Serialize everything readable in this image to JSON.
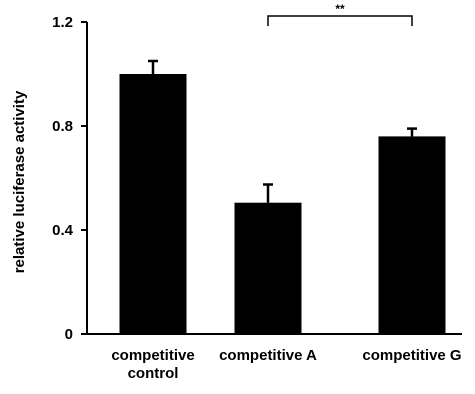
{
  "chart_data": {
    "type": "bar",
    "categories": [
      [
        "competitive",
        "control"
      ],
      [
        "competitive A"
      ],
      [
        "competitive G"
      ]
    ],
    "values": [
      1.0,
      0.505,
      0.76
    ],
    "errors": [
      0.05,
      0.07,
      0.03
    ],
    "ylabel": "relative luciferase activity",
    "ylim": [
      0,
      1.2
    ],
    "yticks": [
      "0",
      "0.4",
      "0.8",
      "1.2"
    ],
    "grid": false,
    "bar_color": "#000000",
    "significance": {
      "from": 1,
      "to": 2,
      "label": "**"
    }
  }
}
